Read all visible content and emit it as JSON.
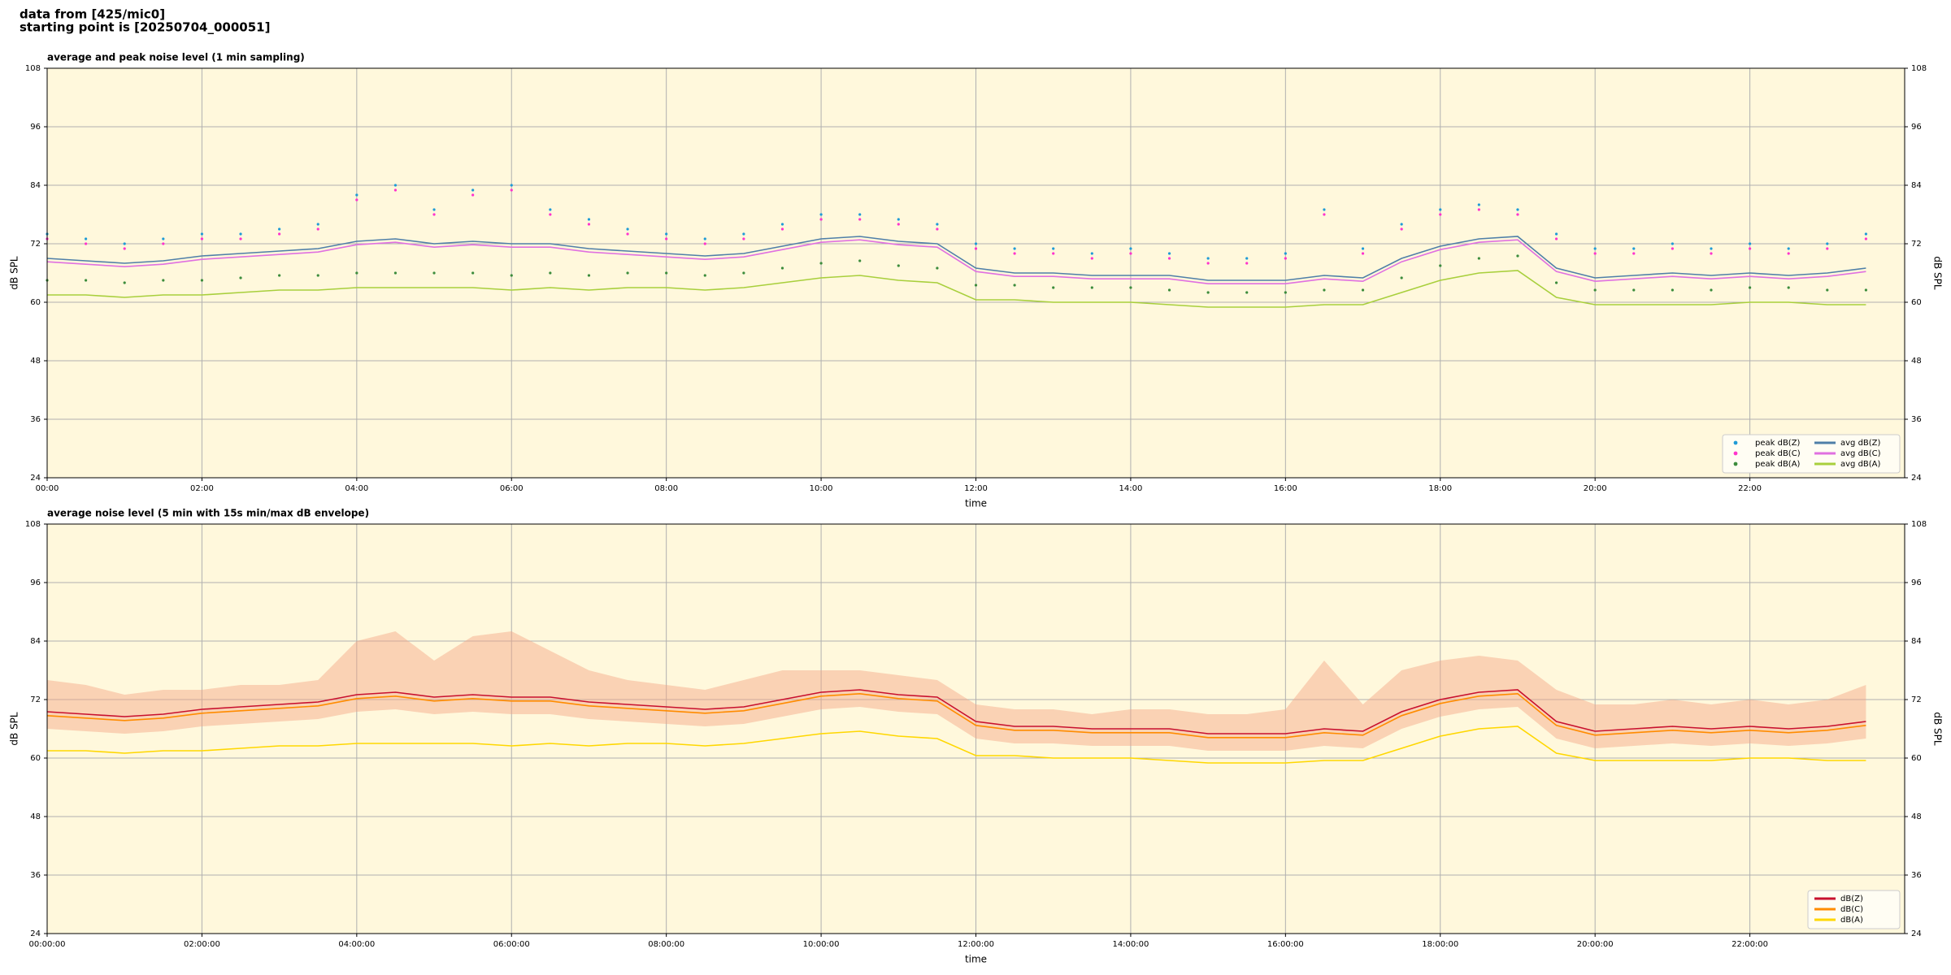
{
  "header": {
    "line1": "data from [425/mic0]",
    "line2": "starting point is [20250704_000051]"
  },
  "chart_data": [
    {
      "type": "line",
      "title": "average and peak noise level (1 min sampling)",
      "xlabel": "time",
      "ylabel": "dB SPL",
      "y2label": "dB SPL",
      "x": [
        0,
        0.5,
        1,
        1.5,
        2,
        2.5,
        3,
        3.5,
        4,
        4.5,
        5,
        5.5,
        6,
        6.5,
        7,
        7.5,
        8,
        8.5,
        9,
        9.5,
        10,
        10.5,
        11,
        11.5,
        12,
        12.5,
        13,
        13.5,
        14,
        14.5,
        15,
        15.5,
        16,
        16.5,
        17,
        17.5,
        18,
        18.5,
        19,
        19.5,
        20,
        20.5,
        21,
        21.5,
        22,
        22.5,
        23,
        23.5
      ],
      "xlim": [
        0,
        24
      ],
      "xticks": [
        {
          "value": 0,
          "label": "00:00"
        },
        {
          "value": 2,
          "label": "02:00"
        },
        {
          "value": 4,
          "label": "04:00"
        },
        {
          "value": 6,
          "label": "06:00"
        },
        {
          "value": 8,
          "label": "08:00"
        },
        {
          "value": 10,
          "label": "10:00"
        },
        {
          "value": 12,
          "label": "12:00"
        },
        {
          "value": 14,
          "label": "14:00"
        },
        {
          "value": 16,
          "label": "16:00"
        },
        {
          "value": 18,
          "label": "18:00"
        },
        {
          "value": 20,
          "label": "20:00"
        },
        {
          "value": 22,
          "label": "22:00"
        }
      ],
      "ylim": [
        24,
        108
      ],
      "yticks": [
        24,
        36,
        48,
        60,
        72,
        84,
        96,
        108
      ],
      "y2lim": [
        24,
        108
      ],
      "y2ticks": [
        24,
        36,
        48,
        60,
        72,
        84,
        96,
        108
      ],
      "grid": true,
      "legend": "lower right",
      "legend_columns": 2,
      "series": [
        {
          "name": "peak dB(Z)",
          "mode": "markers",
          "color": "#1f9bd6",
          "values": [
            74,
            73,
            72,
            73,
            74,
            74,
            75,
            76,
            82,
            84,
            79,
            83,
            84,
            79,
            77,
            75,
            74,
            73,
            74,
            76,
            78,
            78,
            77,
            76,
            72,
            71,
            71,
            70,
            71,
            70,
            69,
            69,
            70,
            79,
            71,
            76,
            79,
            80,
            79,
            74,
            71,
            71,
            72,
            71,
            72,
            71,
            72,
            74
          ]
        },
        {
          "name": "peak dB(C)",
          "mode": "markers",
          "color": "#ff33cc",
          "values": [
            73,
            72,
            71,
            72,
            73,
            73,
            74,
            75,
            81,
            83,
            78,
            82,
            83,
            78,
            76,
            74,
            73,
            72,
            73,
            75,
            77,
            77,
            76,
            75,
            71,
            70,
            70,
            69,
            70,
            69,
            68,
            68,
            69,
            78,
            70,
            75,
            78,
            79,
            78,
            73,
            70,
            70,
            71,
            70,
            71,
            70,
            71,
            73
          ]
        },
        {
          "name": "peak dB(A)",
          "mode": "markers",
          "color": "#3c8c3c",
          "values": [
            64.5,
            64.5,
            64,
            64.5,
            64.5,
            65,
            65.5,
            65.5,
            66,
            66,
            66,
            66,
            65.5,
            66,
            65.5,
            66,
            66,
            65.5,
            66,
            67,
            68,
            68.5,
            67.5,
            67,
            63.5,
            63.5,
            63,
            63,
            63,
            62.5,
            62,
            62,
            62,
            62.5,
            62.5,
            65,
            67.5,
            69,
            69.5,
            64,
            62.5,
            62.5,
            62.5,
            62.5,
            63,
            63,
            62.5,
            62.5
          ]
        },
        {
          "name": "avg dB(Z)",
          "mode": "lines",
          "color": "#4f7fa8",
          "values": [
            69,
            68.5,
            68,
            68.5,
            69.5,
            70,
            70.5,
            71,
            72.5,
            73,
            72,
            72.5,
            72,
            72,
            71,
            70.5,
            70,
            69.5,
            70,
            71.5,
            73,
            73.5,
            72.5,
            72,
            67,
            66,
            66,
            65.5,
            65.5,
            65.5,
            64.5,
            64.5,
            64.5,
            65.5,
            65,
            69,
            71.5,
            73,
            73.5,
            67,
            65,
            65.5,
            66,
            65.5,
            66,
            65.5,
            66,
            67
          ]
        },
        {
          "name": "avg dB(C)",
          "mode": "lines",
          "color": "#e070e0",
          "values": [
            68.3,
            67.8,
            67.3,
            67.8,
            68.8,
            69.3,
            69.8,
            70.3,
            71.8,
            72.3,
            71.3,
            71.8,
            71.3,
            71.3,
            70.3,
            69.8,
            69.3,
            68.8,
            69.3,
            70.8,
            72.3,
            72.8,
            71.8,
            71.3,
            66.3,
            65.3,
            65.3,
            64.8,
            64.8,
            64.8,
            63.8,
            63.8,
            63.8,
            64.8,
            64.3,
            68.3,
            70.8,
            72.3,
            72.8,
            66.3,
            64.3,
            64.8,
            65.3,
            64.8,
            65.3,
            64.8,
            65.3,
            66.3
          ]
        },
        {
          "name": "avg dB(A)",
          "mode": "lines",
          "color": "#a8cf3c",
          "values": [
            61.5,
            61.5,
            61,
            61.5,
            61.5,
            62,
            62.5,
            62.5,
            63,
            63,
            63,
            63,
            62.5,
            63,
            62.5,
            63,
            63,
            62.5,
            63,
            64,
            65,
            65.5,
            64.5,
            64,
            60.5,
            60.5,
            60,
            60,
            60,
            59.5,
            59,
            59,
            59,
            59.5,
            59.5,
            62,
            64.5,
            66,
            66.5,
            61,
            59.5,
            59.5,
            59.5,
            59.5,
            60,
            60,
            59.5,
            59.5
          ]
        }
      ]
    },
    {
      "type": "line",
      "title": "average noise level (5 min with 15s min/max dB envelope)",
      "xlabel": "time",
      "ylabel": "dB SPL",
      "y2label": "dB SPL",
      "x": [
        0,
        0.5,
        1,
        1.5,
        2,
        2.5,
        3,
        3.5,
        4,
        4.5,
        5,
        5.5,
        6,
        6.5,
        7,
        7.5,
        8,
        8.5,
        9,
        9.5,
        10,
        10.5,
        11,
        11.5,
        12,
        12.5,
        13,
        13.5,
        14,
        14.5,
        15,
        15.5,
        16,
        16.5,
        17,
        17.5,
        18,
        18.5,
        19,
        19.5,
        20,
        20.5,
        21,
        21.5,
        22,
        22.5,
        23,
        23.5
      ],
      "xlim": [
        0,
        24
      ],
      "xticks": [
        {
          "value": 0,
          "label": "00:00:00"
        },
        {
          "value": 2,
          "label": "02:00:00"
        },
        {
          "value": 4,
          "label": "04:00:00"
        },
        {
          "value": 6,
          "label": "06:00:00"
        },
        {
          "value": 8,
          "label": "08:00:00"
        },
        {
          "value": 10,
          "label": "10:00:00"
        },
        {
          "value": 12,
          "label": "12:00:00"
        },
        {
          "value": 14,
          "label": "14:00:00"
        },
        {
          "value": 16,
          "label": "16:00:00"
        },
        {
          "value": 18,
          "label": "18:00:00"
        },
        {
          "value": 20,
          "label": "20:00:00"
        },
        {
          "value": 22,
          "label": "22:00:00"
        }
      ],
      "ylim": [
        24,
        108
      ],
      "yticks": [
        24,
        36,
        48,
        60,
        72,
        84,
        96,
        108
      ],
      "y2lim": [
        24,
        108
      ],
      "y2ticks": [
        24,
        36,
        48,
        60,
        72,
        84,
        96,
        108
      ],
      "grid": true,
      "legend": "lower right",
      "legend_columns": 1,
      "envelope": {
        "color": "#f4a582",
        "high": [
          76,
          75,
          73,
          74,
          74,
          75,
          75,
          76,
          84,
          86,
          80,
          85,
          86,
          82,
          78,
          76,
          75,
          74,
          76,
          78,
          78,
          78,
          77,
          76,
          71,
          70,
          70,
          69,
          70,
          70,
          69,
          69,
          70,
          80,
          71,
          78,
          80,
          81,
          80,
          74,
          71,
          71,
          72,
          71,
          72,
          71,
          72,
          75
        ],
        "low": [
          66,
          65.5,
          65,
          65.5,
          66.5,
          67,
          67.5,
          68,
          69.5,
          70,
          69,
          69.5,
          69,
          69,
          68,
          67.5,
          67,
          66.5,
          67,
          68.5,
          70,
          70.5,
          69.5,
          69,
          64,
          63,
          63,
          62.5,
          62.5,
          62.5,
          61.5,
          61.5,
          61.5,
          62.5,
          62,
          66,
          68.5,
          70,
          70.5,
          64,
          62,
          62.5,
          63,
          62.5,
          63,
          62.5,
          63,
          64
        ]
      },
      "series": [
        {
          "name": "dB(Z)",
          "mode": "lines",
          "color": "#c8102e",
          "values": [
            69.5,
            69,
            68.5,
            69,
            70,
            70.5,
            71,
            71.5,
            73,
            73.5,
            72.5,
            73,
            72.5,
            72.5,
            71.5,
            71,
            70.5,
            70,
            70.5,
            72,
            73.5,
            74,
            73,
            72.5,
            67.5,
            66.5,
            66.5,
            66,
            66,
            66,
            65,
            65,
            65,
            66,
            65.5,
            69.5,
            72,
            73.5,
            74,
            67.5,
            65.5,
            66,
            66.5,
            66,
            66.5,
            66,
            66.5,
            67.5
          ]
        },
        {
          "name": "dB(C)",
          "mode": "lines",
          "color": "#ff8c00",
          "values": [
            68.7,
            68.2,
            67.7,
            68.2,
            69.2,
            69.7,
            70.2,
            70.7,
            72.2,
            72.7,
            71.7,
            72.2,
            71.7,
            71.7,
            70.7,
            70.2,
            69.7,
            69.2,
            69.7,
            71.2,
            72.7,
            73.2,
            72.2,
            71.7,
            66.7,
            65.7,
            65.7,
            65.2,
            65.2,
            65.2,
            64.2,
            64.2,
            64.2,
            65.2,
            64.7,
            68.7,
            71.2,
            72.7,
            73.2,
            66.7,
            64.7,
            65.2,
            65.7,
            65.2,
            65.7,
            65.2,
            65.7,
            66.7
          ]
        },
        {
          "name": "dB(A)",
          "mode": "lines",
          "color": "#ffd700",
          "values": [
            61.5,
            61.5,
            61,
            61.5,
            61.5,
            62,
            62.5,
            62.5,
            63,
            63,
            63,
            63,
            62.5,
            63,
            62.5,
            63,
            63,
            62.5,
            63,
            64,
            65,
            65.5,
            64.5,
            64,
            60.5,
            60.5,
            60,
            60,
            60,
            59.5,
            59,
            59,
            59,
            59.5,
            59.5,
            62,
            64.5,
            66,
            66.5,
            61,
            59.5,
            59.5,
            59.5,
            59.5,
            60,
            60,
            59.5,
            59.5
          ]
        }
      ]
    }
  ]
}
